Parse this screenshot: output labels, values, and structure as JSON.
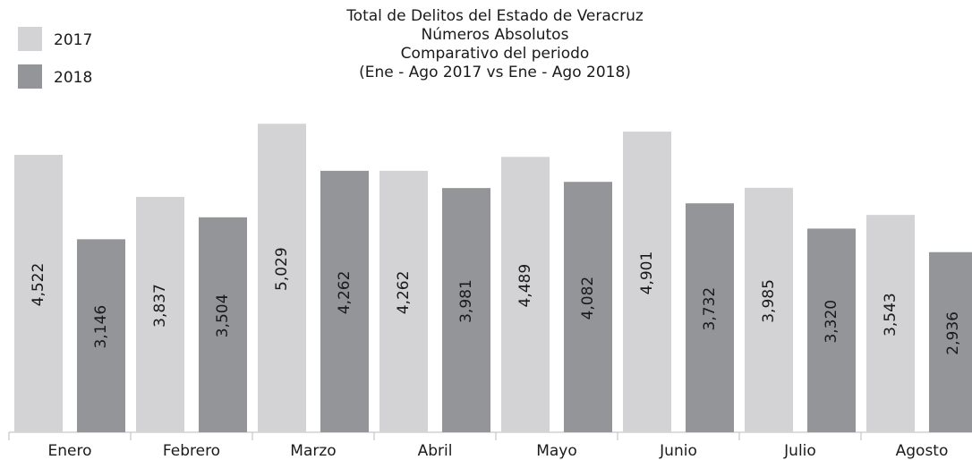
{
  "chart_data": {
    "type": "bar",
    "title": [
      "Total de Delitos del Estado de Veracruz",
      "Números Absolutos",
      "Comparativo del periodo",
      "(Ene - Ago  2017 vs  Ene - Ago  2018)"
    ],
    "categories": [
      "Enero",
      "Febrero",
      "Marzo",
      "Abril",
      "Mayo",
      "Junio",
      "Julio",
      "Agosto"
    ],
    "series": [
      {
        "name": "2017",
        "color": "#d3d3d5",
        "values": [
          4522,
          3837,
          5029,
          4262,
          4489,
          4901,
          3985,
          3543
        ],
        "value_labels": [
          "4,522",
          "3,837",
          "5,029",
          "4,262",
          "4,489",
          "4,901",
          "3,985",
          "3,543"
        ]
      },
      {
        "name": "2018",
        "color": "#939598",
        "values": [
          3146,
          3504,
          4262,
          3981,
          4082,
          3732,
          3320,
          2936
        ],
        "value_labels": [
          "3,146",
          "3,504",
          "4,262",
          "3,981",
          "4,082",
          "3,732",
          "3,320",
          "2,936"
        ]
      }
    ],
    "ylim": [
      0,
      5500
    ]
  }
}
